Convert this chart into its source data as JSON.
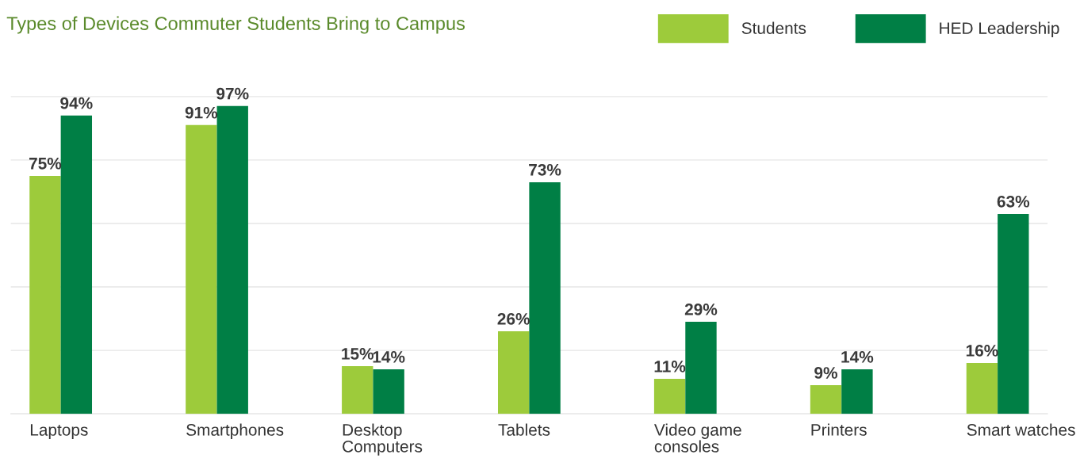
{
  "chart_data": {
    "type": "bar",
    "title": "Types of Devices Commuter Students Bring to Campus",
    "categories": [
      "Laptops",
      "Smartphones",
      "Desktop Computers",
      "Tablets",
      "Video game consoles",
      "Printers",
      "Smart watches"
    ],
    "series": [
      {
        "name": "Students",
        "color": "#9dcb3b",
        "values": [
          75,
          91,
          15,
          26,
          11,
          9,
          16
        ],
        "value_labels": [
          "75%",
          "91%",
          "15%",
          "26%",
          "11%",
          "9%",
          "16%"
        ]
      },
      {
        "name": "HED Leadership",
        "color": "#007f45",
        "values": [
          94,
          97,
          14,
          73,
          29,
          14,
          63
        ],
        "value_labels": [
          "94%",
          "97%",
          "14%",
          "73%",
          "29%",
          "14%",
          "63%"
        ]
      }
    ],
    "grid": "y",
    "legend": "top right",
    "tick_labels": "x"
  }
}
